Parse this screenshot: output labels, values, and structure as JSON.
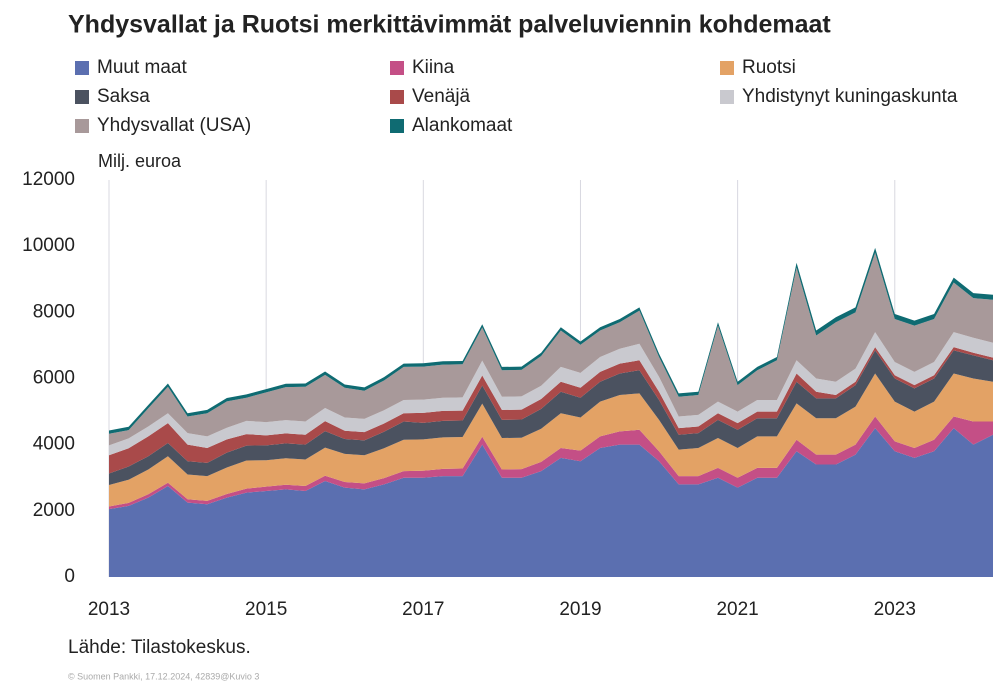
{
  "chart_data": {
    "type": "stacked_area",
    "title": "Yhdysvallat ja Ruotsi merkittävimmät palveluviennin kohdemaat",
    "y_label": "Milj. euroa",
    "source": "Lähde: Tilastokeskus.",
    "footer": "© Suomen Pankki, 17.12.2024, 42839@Kuvio 3",
    "x": [
      2013,
      2013.25,
      2013.5,
      2013.75,
      2014,
      2014.25,
      2014.5,
      2014.75,
      2015,
      2015.25,
      2015.5,
      2015.75,
      2016,
      2016.25,
      2016.5,
      2016.75,
      2017,
      2017.25,
      2017.5,
      2017.75,
      2018,
      2018.25,
      2018.5,
      2018.75,
      2019,
      2019.25,
      2019.5,
      2019.75,
      2020,
      2020.25,
      2020.5,
      2020.75,
      2021,
      2021.25,
      2021.5,
      2021.75,
      2022,
      2022.25,
      2022.5,
      2022.75,
      2023,
      2023.25,
      2023.5,
      2023.75,
      2024,
      2024.25
    ],
    "xlim": [
      2013,
      2024.25
    ],
    "xticks": [
      2013,
      2015,
      2017,
      2019,
      2021,
      2023
    ],
    "ylim": [
      0,
      12000
    ],
    "yticks": [
      0,
      2000,
      4000,
      6000,
      8000,
      10000,
      12000
    ],
    "grid": "x",
    "series": [
      {
        "name": "Muut maat",
        "color": "#5b6fb0",
        "values": [
          2050,
          2150,
          2400,
          2750,
          2250,
          2200,
          2400,
          2550,
          2600,
          2650,
          2600,
          2900,
          2700,
          2650,
          2800,
          3000,
          3000,
          3050,
          3050,
          4000,
          3000,
          3000,
          3200,
          3600,
          3500,
          3900,
          4000,
          4000,
          3500,
          2800,
          2800,
          3000,
          2700,
          3000,
          3000,
          3800,
          3400,
          3400,
          3700,
          4500,
          3800,
          3600,
          3800,
          4500,
          4000,
          4300
        ]
      },
      {
        "name": "Kiina",
        "color": "#c44f86",
        "values": [
          80,
          90,
          100,
          100,
          100,
          100,
          110,
          120,
          130,
          140,
          150,
          160,
          170,
          180,
          190,
          200,
          210,
          220,
          230,
          240,
          250,
          260,
          280,
          300,
          320,
          350,
          400,
          450,
          300,
          250,
          250,
          300,
          300,
          300,
          300,
          350,
          300,
          300,
          300,
          350,
          300,
          300,
          350,
          350,
          700,
          400
        ]
      },
      {
        "name": "Ruotsi",
        "color": "#e3a265",
        "values": [
          650,
          700,
          750,
          800,
          750,
          750,
          800,
          850,
          800,
          800,
          800,
          850,
          850,
          850,
          900,
          950,
          950,
          950,
          950,
          1000,
          950,
          950,
          1000,
          1050,
          1000,
          1050,
          1100,
          1100,
          950,
          800,
          850,
          900,
          900,
          950,
          950,
          1100,
          1100,
          1100,
          1150,
          1300,
          1200,
          1100,
          1150,
          1300,
          1300,
          1200
        ]
      },
      {
        "name": "Saksa",
        "color": "#4b5260",
        "values": [
          350,
          400,
          400,
          400,
          400,
          400,
          450,
          450,
          450,
          450,
          450,
          500,
          450,
          450,
          500,
          550,
          500,
          500,
          500,
          550,
          550,
          550,
          600,
          650,
          600,
          600,
          650,
          700,
          600,
          450,
          450,
          550,
          550,
          550,
          550,
          650,
          600,
          600,
          650,
          700,
          700,
          700,
          700,
          700,
          700,
          650
        ]
      },
      {
        "name": "Venäjä",
        "color": "#a94a4a",
        "values": [
          550,
          550,
          600,
          600,
          500,
          450,
          400,
          350,
          300,
          300,
          300,
          300,
          250,
          250,
          250,
          250,
          300,
          300,
          300,
          300,
          300,
          300,
          300,
          300,
          300,
          300,
          300,
          300,
          250,
          200,
          200,
          200,
          200,
          200,
          200,
          250,
          200,
          100,
          100,
          100,
          100,
          100,
          100,
          100,
          80,
          80
        ]
      },
      {
        "name": "Yhdistynyt kuningaskunta",
        "color": "#c9c9cf",
        "values": [
          300,
          300,
          300,
          300,
          350,
          350,
          350,
          400,
          400,
          400,
          400,
          400,
          400,
          400,
          400,
          400,
          400,
          400,
          400,
          450,
          400,
          400,
          400,
          450,
          450,
          450,
          450,
          500,
          450,
          350,
          350,
          350,
          350,
          350,
          350,
          400,
          400,
          400,
          400,
          450,
          400,
          400,
          400,
          450,
          450,
          450
        ]
      },
      {
        "name": "Yhdysvallat (USA)",
        "color": "#a8999a",
        "values": [
          350,
          250,
          550,
          800,
          500,
          700,
          800,
          700,
          900,
          1000,
          1050,
          1000,
          900,
          850,
          900,
          1000,
          1000,
          1000,
          1000,
          1000,
          800,
          800,
          900,
          1100,
          850,
          800,
          800,
          1000,
          600,
          600,
          600,
          2300,
          800,
          900,
          1200,
          2800,
          1300,
          1800,
          1700,
          2400,
          1300,
          1400,
          1300,
          1500,
          1200,
          1300
        ]
      },
      {
        "name": "Alankomaat",
        "color": "#0f6b72",
        "values": [
          100,
          100,
          100,
          100,
          100,
          100,
          100,
          100,
          100,
          100,
          100,
          100,
          100,
          100,
          100,
          100,
          100,
          100,
          100,
          100,
          100,
          100,
          100,
          100,
          100,
          100,
          100,
          100,
          100,
          100,
          100,
          100,
          100,
          100,
          100,
          150,
          150,
          150,
          150,
          150,
          150,
          150,
          150,
          150,
          150,
          150
        ]
      }
    ]
  }
}
